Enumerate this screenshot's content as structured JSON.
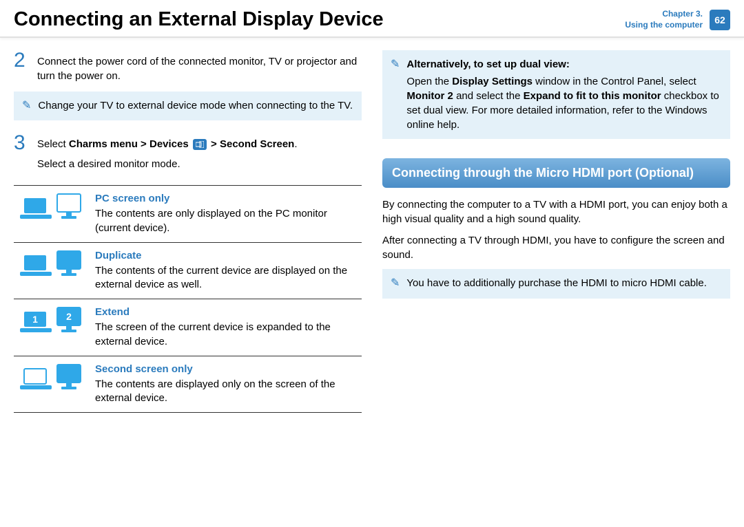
{
  "header": {
    "title": "Connecting an External Display Device",
    "chapter_line1": "Chapter 3.",
    "chapter_line2": "Using the computer",
    "page_number": "62"
  },
  "left": {
    "step2": {
      "number": "2",
      "text": "Connect the power cord of the connected monitor, TV or projector and turn the power on."
    },
    "note1": "Change your TV to external device mode when connecting to the TV.",
    "step3": {
      "number": "3",
      "line1_pre": "Select ",
      "line1_bold1": "Charms menu > Devices ",
      "line1_bold2": " > Second Screen",
      "line1_post": ".",
      "line2": "Select a desired monitor mode."
    },
    "modes": [
      {
        "label": "PC screen only",
        "desc": "The contents are only displayed on the PC monitor (current device).",
        "icon": "pc"
      },
      {
        "label": "Duplicate",
        "desc": "The contents of the current device are displayed on the external device as well.",
        "icon": "dup"
      },
      {
        "label": "Extend",
        "desc": "The screen of the current device is expanded to the external device.",
        "icon": "ext"
      },
      {
        "label": "Second screen only",
        "desc": "The contents are displayed only on the screen of the external device.",
        "icon": "sec"
      }
    ]
  },
  "right": {
    "alt_title": "Alternatively, to set up dual view:",
    "alt_text_pre": "Open the ",
    "alt_bold1": "Display Settings",
    "alt_mid1": " window in the Control Panel, select ",
    "alt_bold2": "Monitor 2",
    "alt_mid2": " and select the ",
    "alt_bold3": "Expand to fit to this monitor",
    "alt_post": " checkbox to set dual view. For more detailed information, refer to the Windows online help.",
    "section_title": "Connecting through the Micro HDMI port (Optional)",
    "para1": "By connecting the computer to a TV with a HDMI port, you can enjoy both a high visual quality and a high sound quality.",
    "para2": "After connecting a TV through HDMI, you have to configure the screen and sound.",
    "note2": "You have to additionally purchase the HDMI to micro HDMI cable."
  },
  "colors": {
    "accent": "#2b7bbd",
    "note_bg": "#e4f1f9"
  }
}
